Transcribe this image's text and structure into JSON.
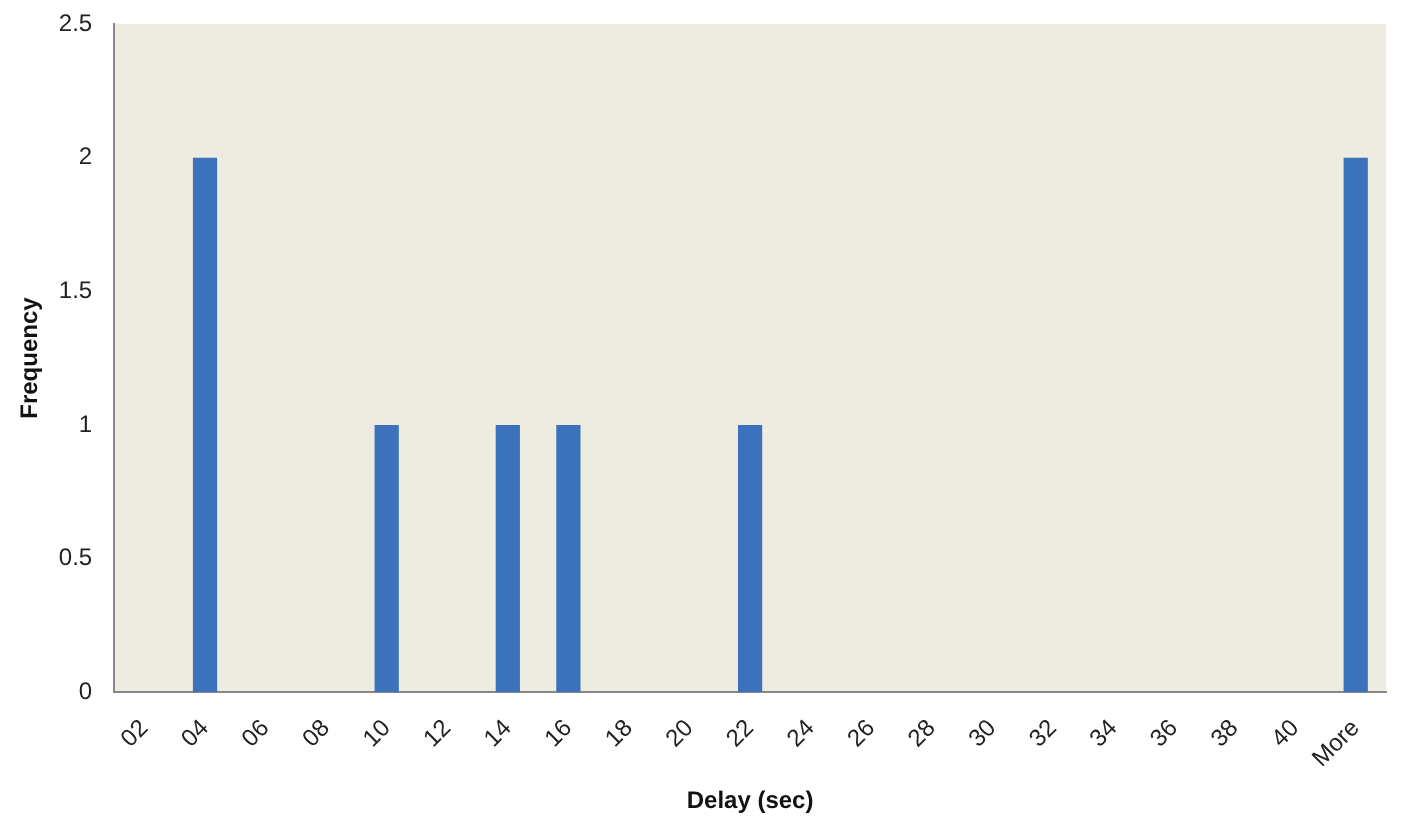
{
  "chart_data": {
    "type": "bar",
    "xlabel": "Delay (sec)",
    "ylabel": "Frequency",
    "categories": [
      "02",
      "04",
      "06",
      "08",
      "10",
      "12",
      "14",
      "16",
      "18",
      "20",
      "22",
      "24",
      "26",
      "28",
      "30",
      "32",
      "34",
      "36",
      "38",
      "40",
      "More"
    ],
    "values": [
      0,
      2,
      0,
      0,
      1,
      0,
      1,
      1,
      0,
      0,
      1,
      0,
      0,
      0,
      0,
      0,
      0,
      0,
      0,
      0,
      2
    ],
    "color": "#3b72bb",
    "ylim": [
      0,
      2.5
    ],
    "yticks": [
      0,
      0.5,
      1,
      1.5,
      2,
      2.5
    ],
    "grid": false,
    "legend": false
  }
}
